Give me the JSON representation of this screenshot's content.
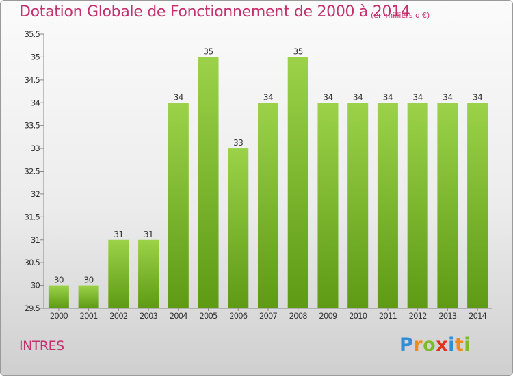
{
  "header": {
    "title": "Dotation Globale de Fonctionnement de 2000 à 2014",
    "unit": "(en milliers d'€)"
  },
  "footer": {
    "commune": "INTRES",
    "logo": [
      "P",
      "r",
      "o",
      "x",
      "i",
      "t",
      "i"
    ]
  },
  "colors": {
    "bar_top": "#9bd24a",
    "bar_bottom": "#5e9a14",
    "title": "#c4306e",
    "logo": [
      "#2f8fd6",
      "#f08a1c",
      "#7dbb2a",
      "#e2311d",
      "#2f8fd6",
      "#f08a1c",
      "#7dbb2a"
    ]
  },
  "chart_data": {
    "type": "bar",
    "title": "Dotation Globale de Fonctionnement de 2000 à 2014",
    "subtitle": "(en milliers d'€)",
    "categories": [
      "2000",
      "2001",
      "2002",
      "2003",
      "2004",
      "2005",
      "2006",
      "2007",
      "2008",
      "2009",
      "2010",
      "2011",
      "2012",
      "2013",
      "2014"
    ],
    "values": [
      30,
      30,
      31,
      31,
      34,
      35,
      33,
      34,
      35,
      34,
      34,
      34,
      34,
      34,
      34
    ],
    "ylim": [
      29.5,
      35.5
    ],
    "yticks": [
      "29.5",
      "30",
      "30.5",
      "31",
      "31.5",
      "32",
      "32.5",
      "33",
      "33.5",
      "34",
      "34.5",
      "35",
      "35.5"
    ],
    "grid": false,
    "legend": "none"
  }
}
